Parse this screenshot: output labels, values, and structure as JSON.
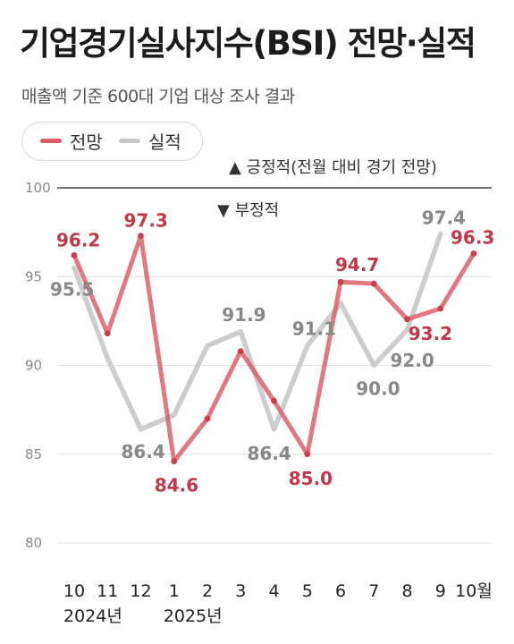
{
  "title": "기업경기실사지수(BSI) 전망·실적",
  "subtitle": "매출액 기준 600대 기업 대상 조사 결과",
  "legend": [
    {
      "label": "전망",
      "color": "#d95c67"
    },
    {
      "label": "실적",
      "color": "#c8c8c8"
    }
  ],
  "notes": {
    "positive": "▲ 긍정적(전월 대비 경기 전망)",
    "negative": "▼ 부정적"
  },
  "chart_data": {
    "type": "line",
    "title": "기업경기실사지수(BSI) 전망·실적",
    "categories": [
      "10",
      "11",
      "12",
      "1",
      "2",
      "3",
      "4",
      "5",
      "6",
      "7",
      "8",
      "9",
      "10월"
    ],
    "year_labels": [
      {
        "text": "2024년",
        "at": 0
      },
      {
        "text": "2025년",
        "at": 3
      }
    ],
    "ylim": [
      80,
      100
    ],
    "yticks": [
      80,
      85,
      90,
      95,
      100
    ],
    "reference_line": 100,
    "series": [
      {
        "name": "전망",
        "color": "#d95c67",
        "values": [
          96.2,
          91.8,
          97.3,
          84.6,
          87.0,
          90.8,
          88.0,
          85.0,
          94.7,
          94.6,
          92.6,
          93.2,
          96.3
        ]
      },
      {
        "name": "실적",
        "color": "#cdcdcd",
        "values": [
          95.5,
          90.4,
          86.4,
          87.2,
          91.1,
          91.9,
          86.4,
          91.1,
          93.5,
          90.0,
          92.0,
          97.4,
          null
        ]
      }
    ],
    "data_labels": [
      {
        "series": 0,
        "index": 0,
        "text": "96.2",
        "color": "#c0394a"
      },
      {
        "series": 0,
        "index": 2,
        "text": "97.3",
        "color": "#c0394a"
      },
      {
        "series": 0,
        "index": 3,
        "text": "84.6",
        "color": "#c0394a"
      },
      {
        "series": 0,
        "index": 7,
        "text": "85.0",
        "color": "#c0394a"
      },
      {
        "series": 0,
        "index": 8,
        "text": "94.7",
        "color": "#c0394a"
      },
      {
        "series": 0,
        "index": 11,
        "text": "93.2",
        "color": "#c0394a"
      },
      {
        "series": 0,
        "index": 12,
        "text": "96.3",
        "color": "#c0394a",
        "emphasis": true
      },
      {
        "series": 1,
        "index": 0,
        "text": "95.5",
        "color": "#888888"
      },
      {
        "series": 1,
        "index": 2,
        "text": "86.4",
        "color": "#888888"
      },
      {
        "series": 1,
        "index": 5,
        "text": "91.9",
        "color": "#888888"
      },
      {
        "series": 1,
        "index": 6,
        "text": "86.4",
        "color": "#888888"
      },
      {
        "series": 1,
        "index": 7,
        "text": "91.1",
        "color": "#888888"
      },
      {
        "series": 1,
        "index": 9,
        "text": "90.0",
        "color": "#888888"
      },
      {
        "series": 1,
        "index": 10,
        "text": "92.0",
        "color": "#888888"
      },
      {
        "series": 1,
        "index": 11,
        "text": "97.4",
        "color": "#888888"
      }
    ]
  }
}
